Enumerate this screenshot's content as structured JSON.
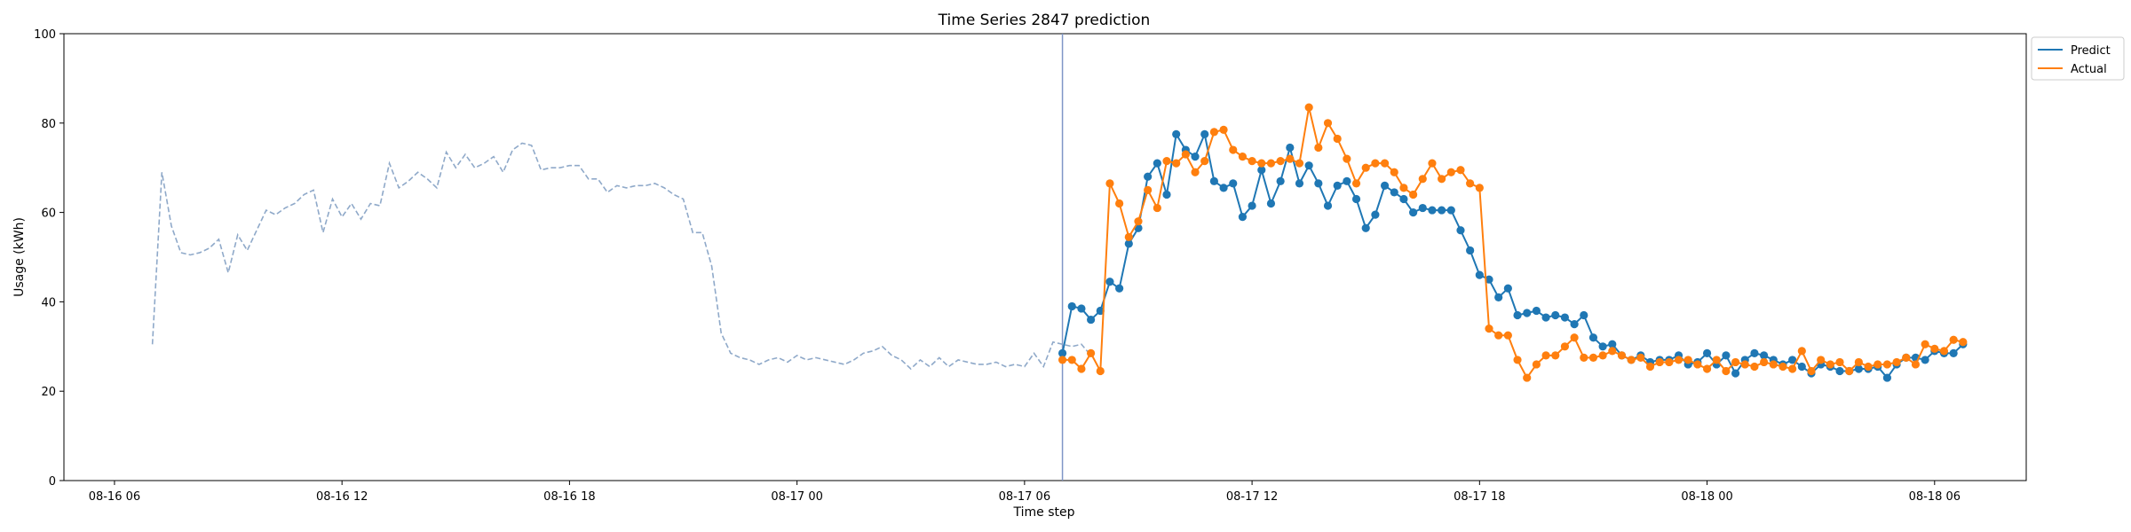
{
  "chart_data": {
    "type": "line",
    "title": "Time Series 2847 prediction",
    "xlabel": "Time step",
    "ylabel": "Usage (kWh)",
    "ylim": [
      0,
      100
    ],
    "y_ticks": [
      0,
      20,
      40,
      60,
      80,
      100
    ],
    "x_ticks": [
      "08-16 06",
      "08-16 12",
      "08-16 18",
      "08-17 00",
      "08-17 06",
      "08-17 12",
      "08-17 18",
      "08-18 00",
      "08-18 06"
    ],
    "xlim": [
      "2023-08-16T04:40",
      "2023-08-18T08:25"
    ],
    "legend": "top-right outside",
    "grid": false,
    "forecast_start": "2023-08-17T07:00",
    "colors": {
      "history": "#8fa9c9",
      "predict": "#1f77b4",
      "actual": "#ff7f0e",
      "split_line": "#7f96c7"
    },
    "history": {
      "start": "2023-08-16T07:00",
      "step_minutes": 15,
      "values": [
        30.5,
        69,
        57,
        51,
        50.5,
        51,
        52,
        54,
        46.5,
        55,
        51.5,
        56,
        60.5,
        59.5,
        61,
        62,
        64,
        65,
        55.5,
        63,
        59,
        62,
        58.5,
        62,
        61.5,
        71,
        65.5,
        67,
        69,
        67.5,
        65.5,
        73.5,
        70,
        73,
        70,
        71,
        72.5,
        69,
        74,
        75.5,
        75,
        69.5,
        70,
        70,
        70.5,
        70.5,
        67.5,
        67.5,
        64.5,
        66,
        65.5,
        66,
        66,
        66.5,
        65.5,
        64,
        63,
        55.5,
        55.5,
        48,
        33,
        28.5,
        27.5,
        27,
        26,
        27,
        27.5,
        26.5,
        28,
        27,
        27.5,
        27,
        26.5,
        26,
        27,
        28.5,
        29,
        30,
        28,
        27,
        25,
        27,
        25.5,
        27.5,
        25.5,
        27,
        26.5,
        26,
        26,
        26.5,
        25.5,
        26,
        25.5,
        28.5,
        25.5,
        31,
        30.5,
        30,
        30.5,
        28
      ]
    },
    "series": [
      {
        "name": "Predict",
        "start": "2023-08-17T07:00",
        "step_minutes": 15,
        "values": [
          28.5,
          39,
          38.5,
          36,
          38,
          44.5,
          43,
          53,
          56.5,
          68,
          71,
          64,
          77.5,
          74,
          72.5,
          77.5,
          67,
          65.5,
          66.5,
          59,
          61.5,
          69.5,
          62,
          67,
          74.5,
          66.5,
          70.5,
          66.5,
          61.5,
          66,
          67,
          63,
          56.5,
          59.5,
          66,
          64.5,
          63,
          60,
          61,
          60.5,
          60.5,
          60.5,
          56,
          51.5,
          46,
          45,
          41,
          43,
          37,
          37.5,
          38,
          36.5,
          37,
          36.5,
          35,
          37,
          32,
          30,
          30.5,
          28,
          27,
          28,
          26.5,
          27,
          27,
          28,
          26,
          26.5,
          28.5,
          26,
          28,
          24,
          27,
          28.5,
          28,
          27,
          26,
          27,
          25.5,
          24,
          26,
          25.5,
          24.5,
          24.5,
          25,
          25,
          25.5,
          23,
          26,
          27.5,
          27.5,
          27,
          29,
          28.5,
          28.5,
          30.5
        ]
      },
      {
        "name": "Actual",
        "start": "2023-08-17T07:00",
        "step_minutes": 15,
        "values": [
          27,
          27,
          25,
          28.5,
          24.5,
          66.5,
          62,
          54.5,
          58,
          65,
          61,
          71.5,
          71,
          73,
          69,
          71.5,
          78,
          78.5,
          74,
          72.5,
          71.5,
          71,
          71,
          71.5,
          72,
          71,
          83.5,
          74.5,
          80,
          76.5,
          72,
          66.5,
          70,
          71,
          71,
          69,
          65.5,
          64,
          67.5,
          71,
          67.5,
          69,
          69.5,
          66.5,
          65.5,
          34,
          32.5,
          32.5,
          27,
          23,
          26,
          28,
          28,
          30,
          32,
          27.5,
          27.5,
          28,
          29,
          28,
          27,
          27.5,
          25.5,
          26.5,
          26.5,
          27,
          27,
          26,
          25,
          27,
          24.5,
          26.5,
          26,
          25.5,
          26.5,
          26,
          25.5,
          25,
          29,
          24.5,
          27,
          26,
          26.5,
          24.5,
          26.5,
          25.5,
          26,
          26,
          26.5,
          27.5,
          26,
          30.5,
          29.5,
          29,
          31.5,
          31
        ]
      }
    ]
  }
}
